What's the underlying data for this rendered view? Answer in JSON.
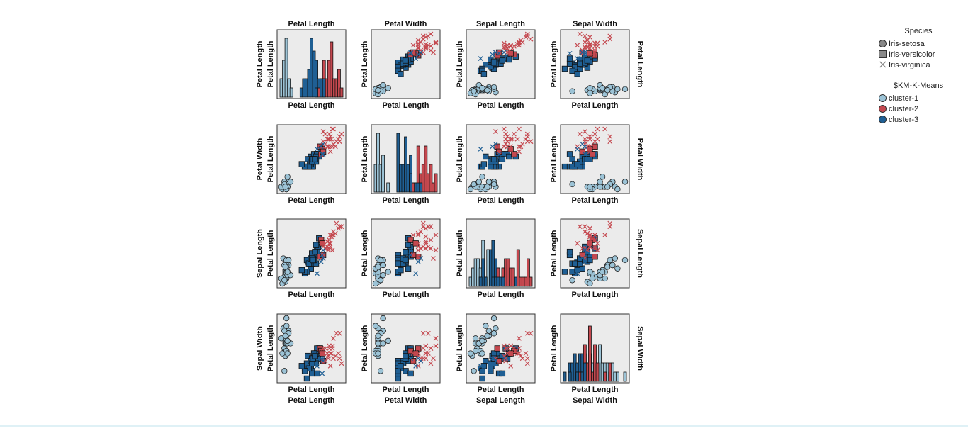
{
  "chart_data": {
    "type": "scatter",
    "title": "",
    "variables": [
      "Petal Length",
      "Petal Width",
      "Sepal Length",
      "Sepal Width"
    ],
    "panel_x_labels": [
      [
        "Petal Length",
        "Petal Length",
        "Petal Length",
        "Petal Length"
      ],
      [
        "Petal Length",
        "Petal Length",
        "Petal Length",
        "Petal Length"
      ],
      [
        "Petal Length",
        "Petal Length",
        "Petal Length",
        "Petal Length"
      ],
      [
        "Petal Length",
        "Petal Length",
        "Petal Length",
        "Petal Length"
      ]
    ],
    "panel_y_labels": [
      [
        "Petal Length",
        "Petal Length",
        "Petal Length",
        "Petal Length"
      ],
      [
        "Petal Length",
        "Petal Length",
        "Petal Length",
        "Petal Length"
      ],
      [
        "Petal Length",
        "Petal Length",
        "Petal Length",
        "Petal Length"
      ],
      [
        "Petal Length",
        "Petal Length",
        "Petal Length",
        "Petal Length"
      ]
    ],
    "column_labels": [
      "Petal Length",
      "Petal Width",
      "Sepal Length",
      "Sepal Width"
    ],
    "row_labels": [
      "Petal Length",
      "Petal Width",
      "Sepal Length",
      "Sepal Width"
    ],
    "grid": false,
    "legend_placement": "top-right",
    "legends": [
      {
        "title": "Species",
        "encoding": "shape",
        "items": [
          {
            "label": "Iris-setosa",
            "marker": "circle"
          },
          {
            "label": "Iris-versicolor",
            "marker": "square"
          },
          {
            "label": "Iris-virginica",
            "marker": "x"
          }
        ]
      },
      {
        "title": "$KM-K-Means",
        "encoding": "color",
        "items": [
          {
            "label": "cluster-1",
            "color": "#9cc3d6"
          },
          {
            "label": "cluster-2",
            "color": "#c4484f"
          },
          {
            "label": "cluster-3",
            "color": "#1f5f94"
          }
        ]
      }
    ],
    "ranges": {
      "Petal Length": [
        1.0,
        6.9
      ],
      "Petal Width": [
        0.1,
        2.5
      ],
      "Sepal Length": [
        4.3,
        7.9
      ],
      "Sepal Width": [
        2.0,
        4.4
      ]
    },
    "series": [
      {
        "species": "Iris-setosa",
        "cluster": "cluster-1",
        "points": [
          [
            1.4,
            0.2,
            5.1,
            3.5
          ],
          [
            1.4,
            0.2,
            4.9,
            3.0
          ],
          [
            1.3,
            0.2,
            4.7,
            3.2
          ],
          [
            1.5,
            0.2,
            4.6,
            3.1
          ],
          [
            1.4,
            0.2,
            5.0,
            3.6
          ],
          [
            1.7,
            0.4,
            5.4,
            3.9
          ],
          [
            1.4,
            0.3,
            4.6,
            3.4
          ],
          [
            1.5,
            0.2,
            5.0,
            3.4
          ],
          [
            1.4,
            0.2,
            4.4,
            2.9
          ],
          [
            1.5,
            0.1,
            4.9,
            3.1
          ],
          [
            1.5,
            0.2,
            5.4,
            3.7
          ],
          [
            1.6,
            0.2,
            4.8,
            3.4
          ],
          [
            1.1,
            0.1,
            4.3,
            3.0
          ],
          [
            1.2,
            0.2,
            5.8,
            4.0
          ],
          [
            1.5,
            0.4,
            5.7,
            4.4
          ],
          [
            1.3,
            0.4,
            5.4,
            3.9
          ],
          [
            1.7,
            0.3,
            5.7,
            3.8
          ],
          [
            1.0,
            0.2,
            4.6,
            3.6
          ],
          [
            1.9,
            0.4,
            4.8,
            3.4
          ],
          [
            1.6,
            0.2,
            5.0,
            3.0
          ],
          [
            1.5,
            0.1,
            5.2,
            4.1
          ],
          [
            1.3,
            0.3,
            4.5,
            2.3
          ],
          [
            1.6,
            0.6,
            5.0,
            3.5
          ],
          [
            1.4,
            0.2,
            5.3,
            3.7
          ]
        ]
      },
      {
        "species": "Iris-versicolor",
        "cluster": "cluster-3",
        "points": [
          [
            4.7,
            1.4,
            7.0,
            3.2
          ],
          [
            4.5,
            1.5,
            6.4,
            3.2
          ],
          [
            4.0,
            1.3,
            5.5,
            2.3
          ],
          [
            4.6,
            1.5,
            6.5,
            2.8
          ],
          [
            3.3,
            1.0,
            4.9,
            2.4
          ],
          [
            3.9,
            1.4,
            5.2,
            2.7
          ],
          [
            3.5,
            1.0,
            5.0,
            2.0
          ],
          [
            4.2,
            1.5,
            5.9,
            3.0
          ],
          [
            4.0,
            1.0,
            6.0,
            2.2
          ],
          [
            3.6,
            1.3,
            5.6,
            2.9
          ],
          [
            4.1,
            1.0,
            5.8,
            2.7
          ],
          [
            4.5,
            1.5,
            6.2,
            2.2
          ],
          [
            3.9,
            1.1,
            5.6,
            2.5
          ],
          [
            4.0,
            1.3,
            6.1,
            2.8
          ],
          [
            4.4,
            1.4,
            6.6,
            3.0
          ],
          [
            3.5,
            1.0,
            5.7,
            2.6
          ],
          [
            3.8,
            1.1,
            5.5,
            2.4
          ],
          [
            3.7,
            1.0,
            5.5,
            2.4
          ],
          [
            3.9,
            1.2,
            5.8,
            2.7
          ],
          [
            4.4,
            1.2,
            5.5,
            2.6
          ],
          [
            4.0,
            1.2,
            5.8,
            2.6
          ],
          [
            3.3,
            1.0,
            5.0,
            2.3
          ],
          [
            4.2,
            1.3,
            5.7,
            3.0
          ],
          [
            4.1,
            1.3,
            5.7,
            2.8
          ],
          [
            3.0,
            1.1,
            5.1,
            2.5
          ],
          [
            4.3,
            1.3,
            6.2,
            2.9
          ]
        ]
      },
      {
        "species": "Iris-versicolor",
        "cluster": "cluster-2",
        "points": [
          [
            4.8,
            1.8,
            5.9,
            3.2
          ],
          [
            4.9,
            1.5,
            6.9,
            3.1
          ],
          [
            5.0,
            1.7,
            6.7,
            3.0
          ],
          [
            5.1,
            1.6,
            6.0,
            2.7
          ]
        ]
      },
      {
        "species": "Iris-virginica",
        "cluster": "cluster-2",
        "points": [
          [
            6.0,
            2.5,
            6.3,
            3.3
          ],
          [
            5.9,
            2.1,
            7.1,
            3.0
          ],
          [
            5.6,
            1.8,
            6.3,
            2.9
          ],
          [
            5.8,
            2.2,
            6.5,
            3.0
          ],
          [
            6.6,
            2.1,
            7.6,
            3.0
          ],
          [
            6.3,
            1.8,
            7.3,
            2.9
          ],
          [
            5.8,
            1.8,
            6.7,
            2.5
          ],
          [
            6.1,
            2.5,
            7.2,
            3.6
          ],
          [
            5.1,
            2.0,
            6.5,
            3.2
          ],
          [
            5.3,
            1.9,
            6.4,
            2.7
          ],
          [
            5.5,
            2.1,
            6.8,
            3.0
          ],
          [
            5.1,
            2.4,
            5.8,
            2.8
          ],
          [
            5.3,
            2.3,
            6.4,
            3.2
          ],
          [
            5.5,
            1.8,
            6.5,
            3.0
          ],
          [
            6.7,
            2.2,
            7.7,
            3.8
          ],
          [
            6.9,
            2.3,
            7.7,
            2.6
          ],
          [
            5.7,
            2.3,
            6.9,
            3.2
          ],
          [
            6.7,
            2.0,
            7.7,
            2.8
          ],
          [
            5.7,
            2.1,
            6.7,
            3.3
          ],
          [
            6.0,
            1.8,
            7.2,
            3.2
          ],
          [
            5.6,
            2.1,
            6.4,
            2.8
          ],
          [
            5.8,
            1.6,
            7.2,
            3.0
          ],
          [
            6.1,
            1.9,
            7.4,
            2.8
          ],
          [
            6.4,
            2.0,
            7.9,
            3.8
          ]
        ]
      },
      {
        "species": "Iris-virginica",
        "cluster": "cluster-3",
        "points": [
          [
            5.1,
            1.9,
            5.8,
            2.7
          ],
          [
            4.5,
            1.7,
            4.9,
            2.5
          ],
          [
            5.0,
            1.5,
            6.0,
            2.2
          ],
          [
            4.9,
            1.8,
            5.6,
            2.8
          ],
          [
            5.1,
            1.5,
            6.3,
            2.8
          ]
        ]
      }
    ]
  }
}
